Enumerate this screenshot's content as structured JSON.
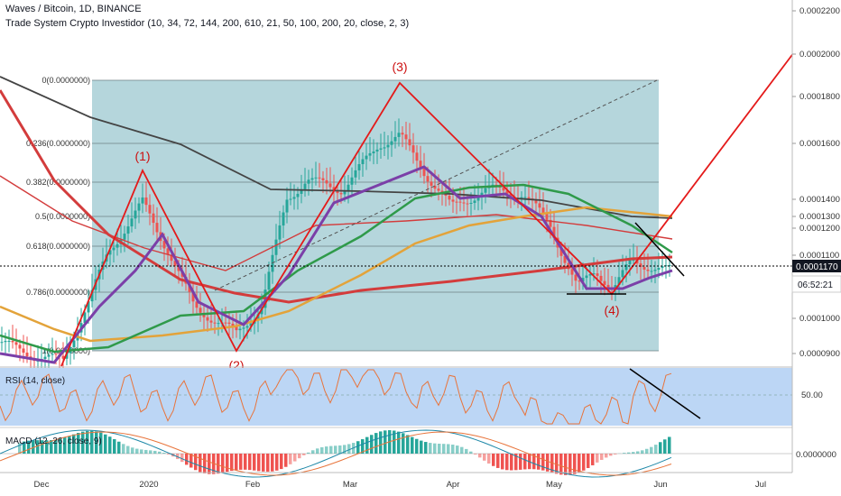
{
  "header": {
    "symbol_line": "Waves / Bitcoin, 1D, BINANCE",
    "indicator_line": "Trade System Crypto Investidor (10, 34, 72, 144, 200, 610, 21, 50, 100, 200, 20, close, 2, 3)"
  },
  "panes": {
    "rsi_label": "RSI (14, close)",
    "macd_label": "MACD (12, 26, close, 9)"
  },
  "chart_data": {
    "type": "line",
    "title": "Waves / Bitcoin, 1D, BINANCE",
    "y_axis_ticks": [
      "0.0002200",
      "0.0002000",
      "0.0001800",
      "0.0001600",
      "0.0001400",
      "0.0001300",
      "0.0001200",
      "0.0001100",
      "0.0001000",
      "0.0000900"
    ],
    "y_axis_values": [
      0.00022,
      0.0002,
      0.00018,
      0.00016,
      0.00014,
      0.00013,
      0.00012,
      0.00011,
      0.0001,
      9e-05
    ],
    "last_price_label": "0.0001170",
    "countdown_label": "06:52:21",
    "x_axis_ticks": [
      "Dec",
      "2020",
      "Feb",
      "Mar",
      "Apr",
      "May",
      "Jun",
      "Jul"
    ],
    "fib_levels": [
      "0(0.0000000)",
      "0.236(0.0000000)",
      "0.382(0.0000000)",
      "0.5(0.0000000)",
      "0.618(0.0000000)",
      "0.786(0.0000000)",
      "1(0.0000000)"
    ],
    "wave_labels": [
      "(1)",
      "(2)",
      "(3)",
      "(4)"
    ],
    "rsi_tick": "50.00",
    "macd_tick": "0.0000000",
    "colors": {
      "fib_fill": "#a8cfd6",
      "rsi_fill": "#bcd6f5",
      "wave": "#e41a1a",
      "ma_purple": "#7b3fa8",
      "ma_green": "#2f9a4a",
      "ma_orange": "#e3a33a",
      "ma_red": "#d33c3c",
      "ma_dark": "#444444",
      "candle_up": "#26a69a",
      "candle_down": "#ef5350",
      "rsi_line": "#e8743b",
      "macd_up": "#26a69a",
      "macd_down": "#ef5350"
    }
  }
}
